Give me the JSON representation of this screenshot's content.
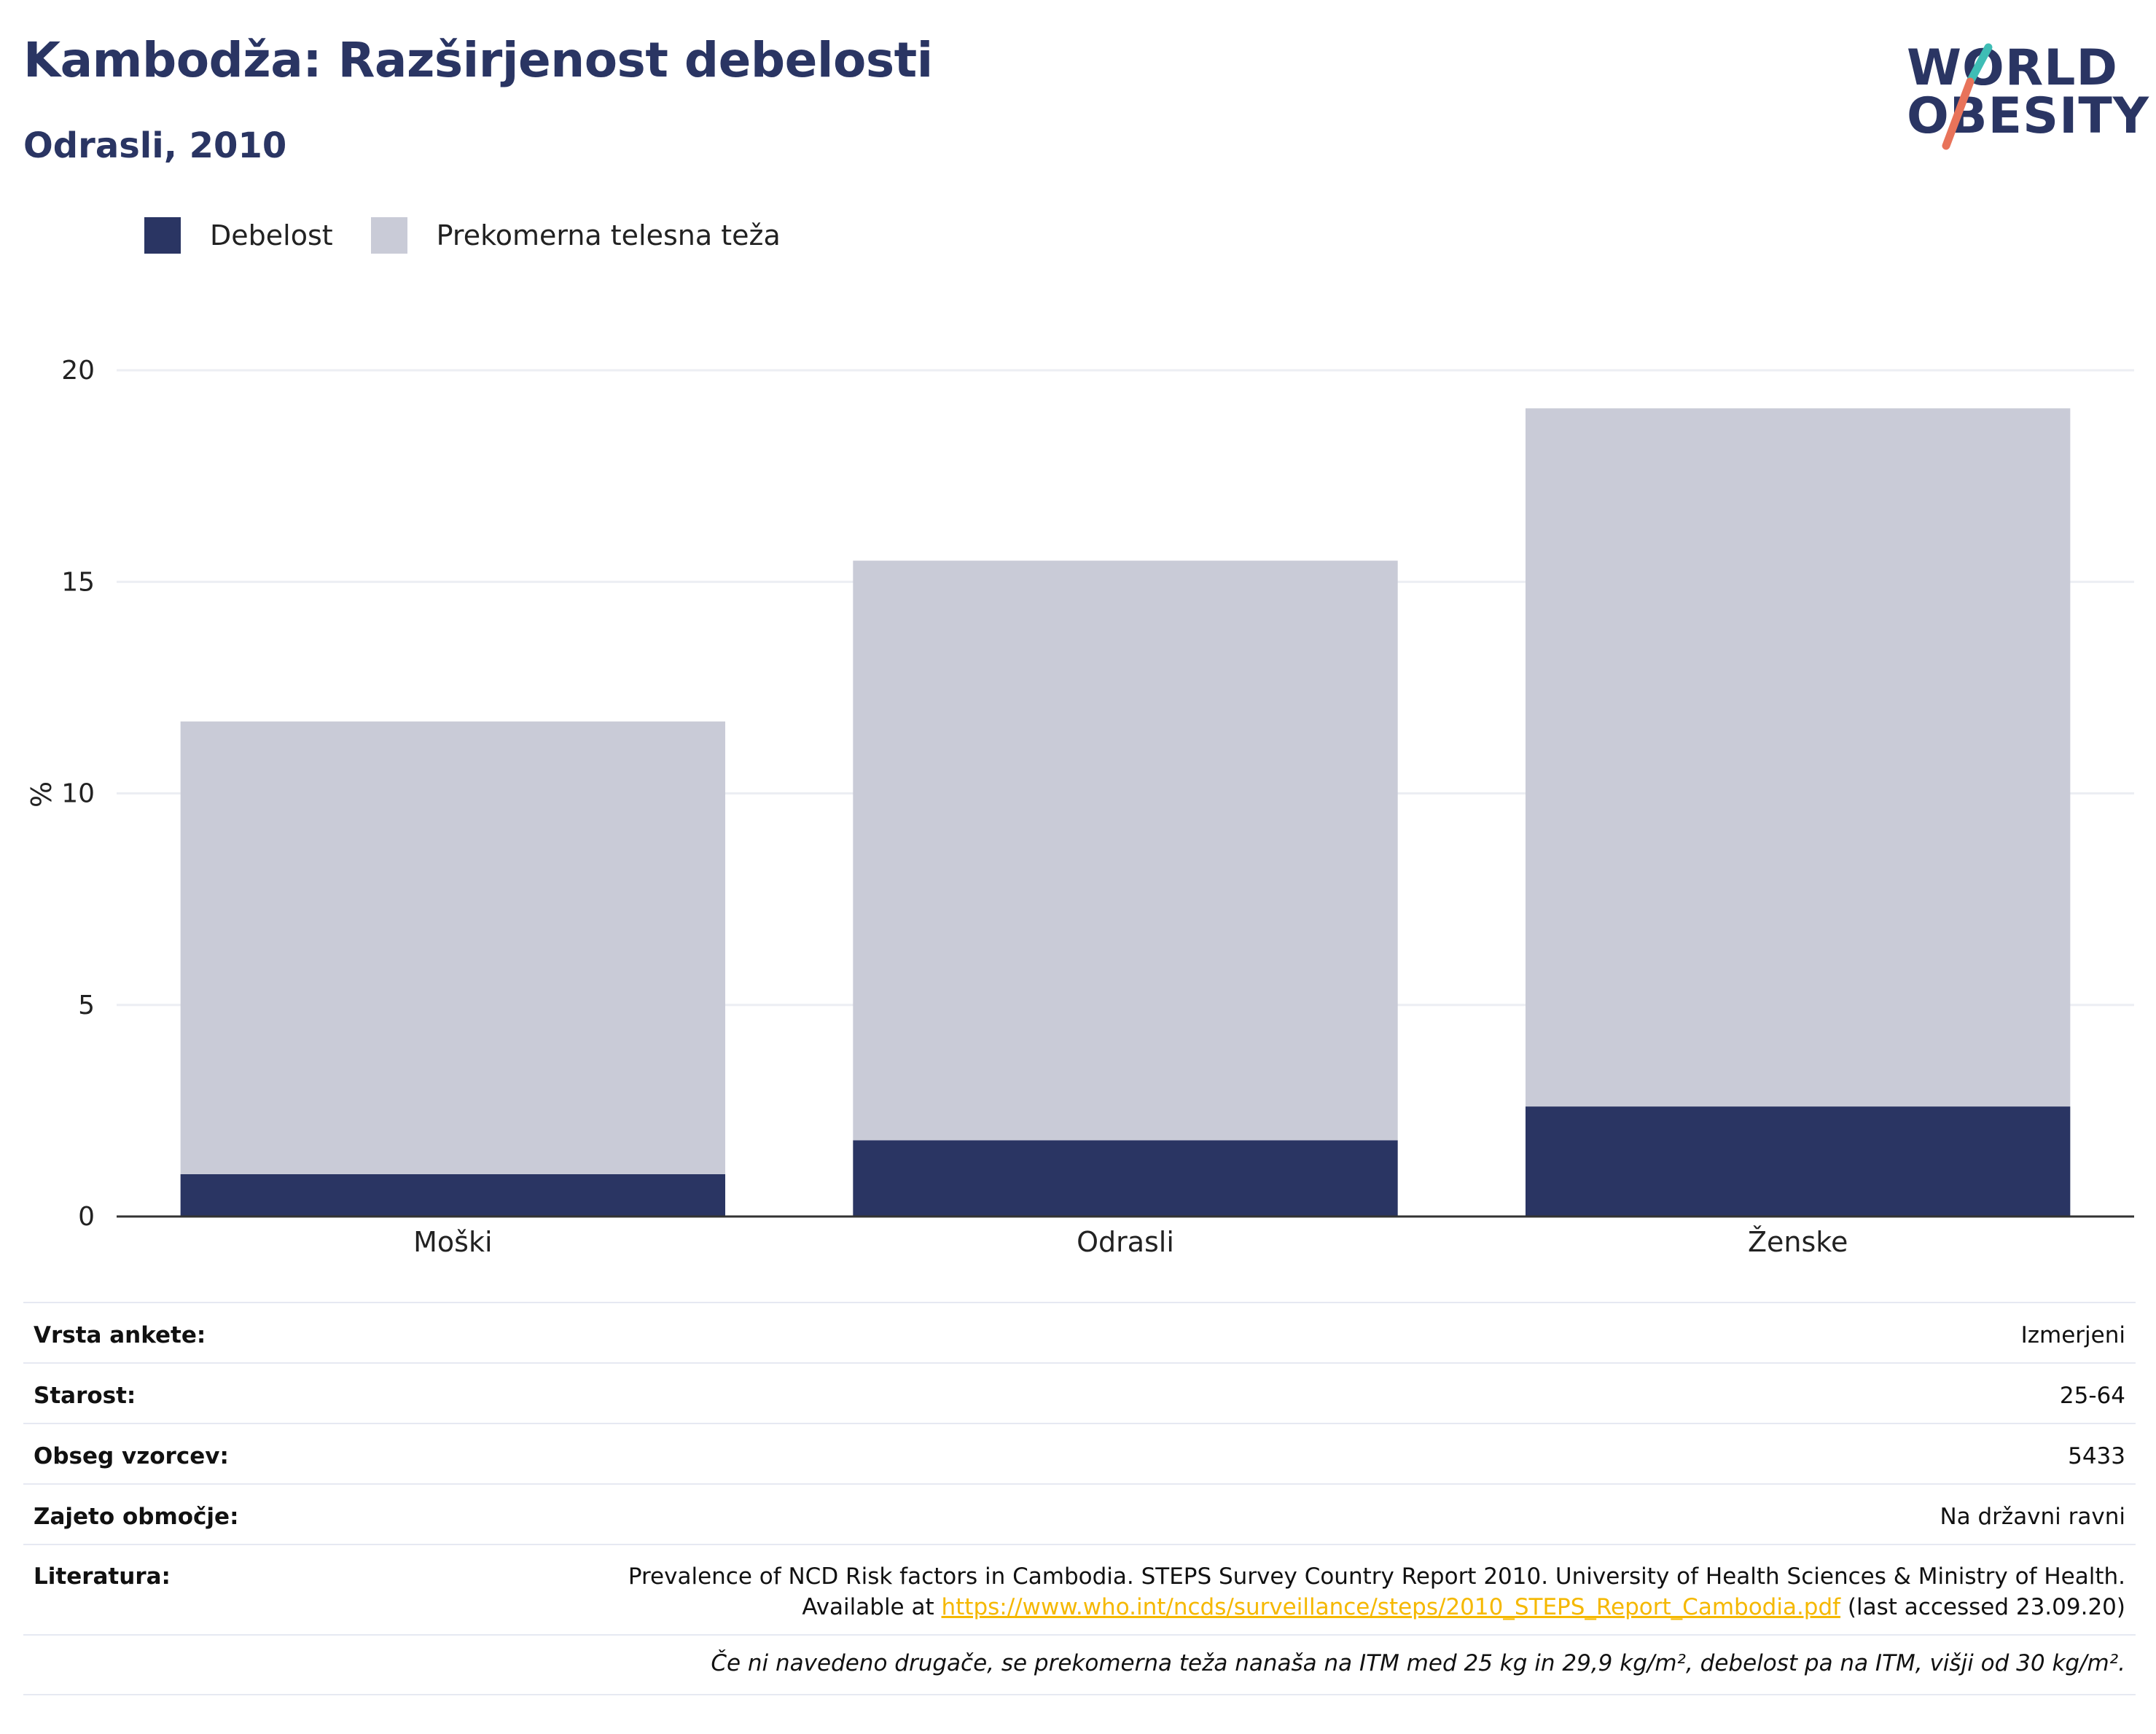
{
  "header": {
    "title": "Kambodža: Razširjenost debelosti",
    "subtitle": "Odrasli, 2010"
  },
  "logo": {
    "line1": "WORLD",
    "line2": "OBESITY",
    "slash_colors": [
      "#3fbdb5",
      "#e8735a"
    ]
  },
  "legend": [
    {
      "label": "Debelost",
      "color": "#2a3563"
    },
    {
      "label": "Prekomerna telesna teža",
      "color": "#c9cbd7"
    }
  ],
  "chart_data": {
    "type": "bar",
    "stacked": true,
    "categories": [
      "Moški",
      "Odrasli",
      "Ženske"
    ],
    "series": [
      {
        "name": "Debelost",
        "values": [
          1.0,
          1.8,
          2.6
        ],
        "color": "#2a3563"
      },
      {
        "name": "Prekomerna telesna teža",
        "values": [
          10.7,
          13.7,
          16.5
        ],
        "color": "#c9cbd7"
      }
    ],
    "ylabel": "%",
    "ylim": [
      0,
      20
    ],
    "yticks": [
      0,
      5,
      10,
      15,
      20
    ],
    "grid": true,
    "legend_position": "top-left"
  },
  "info": {
    "rows": [
      {
        "key": "Vrsta ankete:",
        "value": "Izmerjeni"
      },
      {
        "key": "Starost:",
        "value": "25-64"
      },
      {
        "key": "Obseg vzorcev:",
        "value": "5433"
      },
      {
        "key": "Zajeto območje:",
        "value": "Na državni ravni"
      }
    ],
    "literature": {
      "key": "Literatura:",
      "line1": "Prevalence of NCD Risk factors in Cambodia. STEPS Survey Country Report 2010. University of Health Sciences & Ministry of Health.",
      "line2_prefix": "Available at ",
      "link": "https://www.who.int/ncds/surveillance/steps/2010_STEPS_Report_Cambodia.pdf",
      "line2_suffix": " (last accessed 23.09.20)"
    },
    "note": "Če ni navedeno drugače, se prekomerna teža nanaša na ITM med 25 kg in 29,9 kg/m², debelost pa na ITM, višji od 30 kg/m²."
  }
}
